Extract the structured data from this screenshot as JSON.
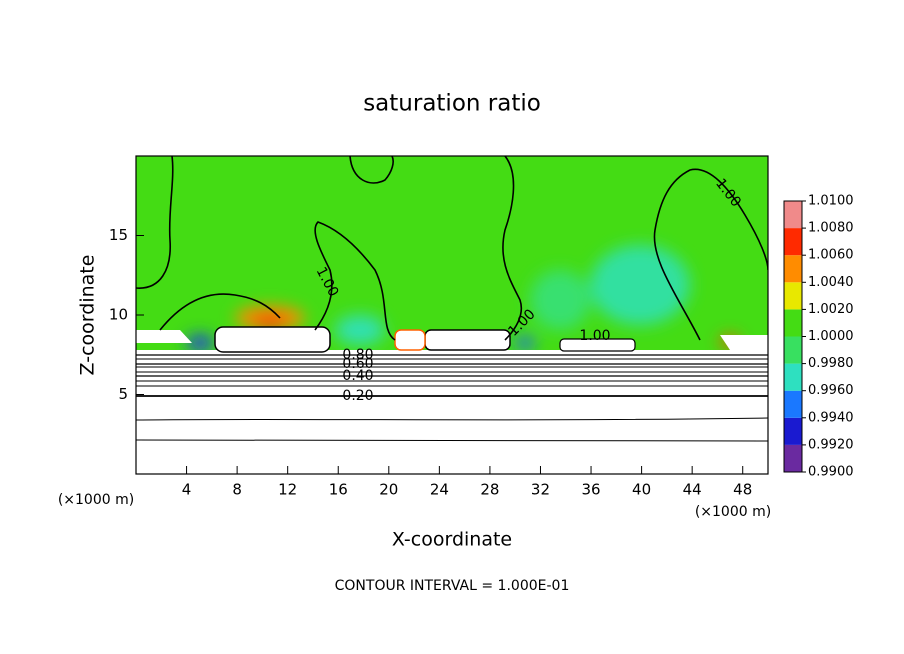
{
  "chart_data": {
    "type": "contour",
    "title": "saturation ratio",
    "x_label": "X-coordinate",
    "y_label": "Z-coordinate",
    "x_unit_label": "(×1000 m)",
    "y_unit_label": "(×1000 m)",
    "footer": "CONTOUR INTERVAL = 1.000E-01",
    "xlim": [
      0,
      50
    ],
    "ylim": [
      0,
      20
    ],
    "xticks": [
      4,
      8,
      12,
      16,
      20,
      24,
      28,
      32,
      36,
      40,
      44,
      48
    ],
    "yticks": [
      5,
      10,
      15
    ],
    "contour_labels": [
      {
        "value": 1.0,
        "label": "1.00"
      },
      {
        "value": 1.0,
        "label": "1.00"
      },
      {
        "value": 1.0,
        "label": "1.00"
      },
      {
        "value": 1.0,
        "label": "1.00"
      },
      {
        "value": 0.8,
        "label": "0.80"
      },
      {
        "value": 0.6,
        "label": "0.60"
      },
      {
        "value": 0.4,
        "label": "0.40"
      },
      {
        "value": 0.2,
        "label": "0.20"
      }
    ],
    "colorbar": {
      "ticks": [
        {
          "value": 0.99,
          "label": "0.9900"
        },
        {
          "value": 0.992,
          "label": "0.9920"
        },
        {
          "value": 0.994,
          "label": "0.9940"
        },
        {
          "value": 0.996,
          "label": "0.9960"
        },
        {
          "value": 0.998,
          "label": "0.9980"
        },
        {
          "value": 1.0,
          "label": "1.0000"
        },
        {
          "value": 1.002,
          "label": "1.0020"
        },
        {
          "value": 1.004,
          "label": "1.0040"
        },
        {
          "value": 1.006,
          "label": "1.0060"
        },
        {
          "value": 1.008,
          "label": "1.0080"
        },
        {
          "value": 1.01,
          "label": "1.0100"
        }
      ],
      "colors": [
        "#6a2aa0",
        "#1a1ad0",
        "#1a78ff",
        "#2ee0c0",
        "#38e060",
        "#44dc14",
        "#e8e800",
        "#ff8c00",
        "#ff2a00",
        "#f08a8a"
      ]
    }
  }
}
